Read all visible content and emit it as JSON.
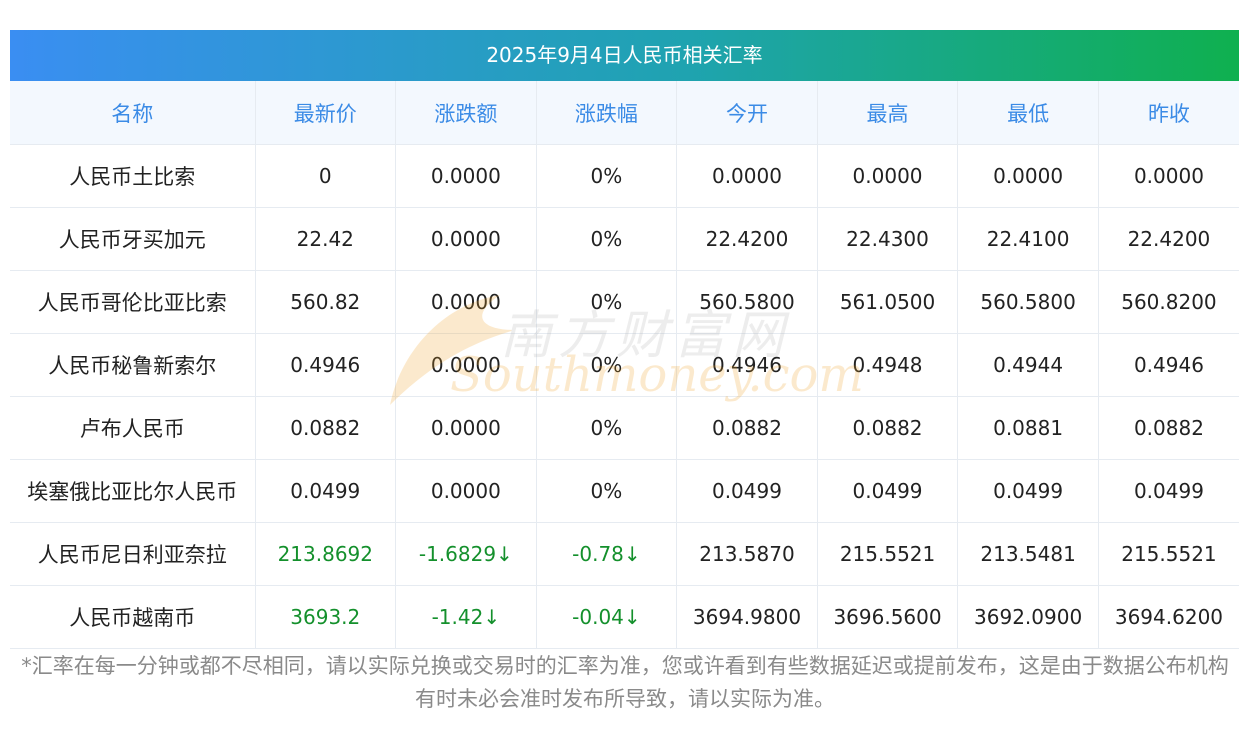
{
  "title": "2025年9月4日人民币相关汇率",
  "headers": [
    "名称",
    "最新价",
    "涨跌额",
    "涨跌幅",
    "今开",
    "最高",
    "最低",
    "昨收"
  ],
  "rows": [
    {
      "name": "人民币土比索",
      "latest": "0",
      "change": "0.0000",
      "pct": "0%",
      "open": "0.0000",
      "high": "0.0000",
      "low": "0.0000",
      "prev": "0.0000",
      "trend": "flat"
    },
    {
      "name": "人民币牙买加元",
      "latest": "22.42",
      "change": "0.0000",
      "pct": "0%",
      "open": "22.4200",
      "high": "22.4300",
      "low": "22.4100",
      "prev": "22.4200",
      "trend": "flat"
    },
    {
      "name": "人民币哥伦比亚比索",
      "latest": "560.82",
      "change": "0.0000",
      "pct": "0%",
      "open": "560.5800",
      "high": "561.0500",
      "low": "560.5800",
      "prev": "560.8200",
      "trend": "flat"
    },
    {
      "name": "人民币秘鲁新索尔",
      "latest": "0.4946",
      "change": "0.0000",
      "pct": "0%",
      "open": "0.4946",
      "high": "0.4948",
      "low": "0.4944",
      "prev": "0.4946",
      "trend": "flat"
    },
    {
      "name": "卢布人民币",
      "latest": "0.0882",
      "change": "0.0000",
      "pct": "0%",
      "open": "0.0882",
      "high": "0.0882",
      "low": "0.0881",
      "prev": "0.0882",
      "trend": "flat"
    },
    {
      "name": "埃塞俄比亚比尔人民币",
      "latest": "0.0499",
      "change": "0.0000",
      "pct": "0%",
      "open": "0.0499",
      "high": "0.0499",
      "low": "0.0499",
      "prev": "0.0499",
      "trend": "flat"
    },
    {
      "name": "人民币尼日利亚奈拉",
      "latest": "213.8692",
      "change": "-1.6829↓",
      "pct": "-0.78↓",
      "open": "213.5870",
      "high": "215.5521",
      "low": "213.5481",
      "prev": "215.5521",
      "trend": "down"
    },
    {
      "name": "人民币越南币",
      "latest": "3693.2",
      "change": "-1.42↓",
      "pct": "-0.04↓",
      "open": "3694.9800",
      "high": "3696.5600",
      "low": "3692.0900",
      "prev": "3694.6200",
      "trend": "down"
    }
  ],
  "note": "*汇率在每一分钟或都不尽相同，请以实际兑换或交易时的汇率为准，您或许看到有些数据延迟或提前发布，这是由于数据公布机构有时未必会准时发布所导致，请以实际为准。",
  "watermark": {
    "cn": "南方财富网",
    "en": "Southmoney.com"
  },
  "colors": {
    "header_text": "#3b8be6",
    "trend_down": "#14902c",
    "title_start": "#3a8ef2",
    "title_end": "#0fb04f"
  }
}
